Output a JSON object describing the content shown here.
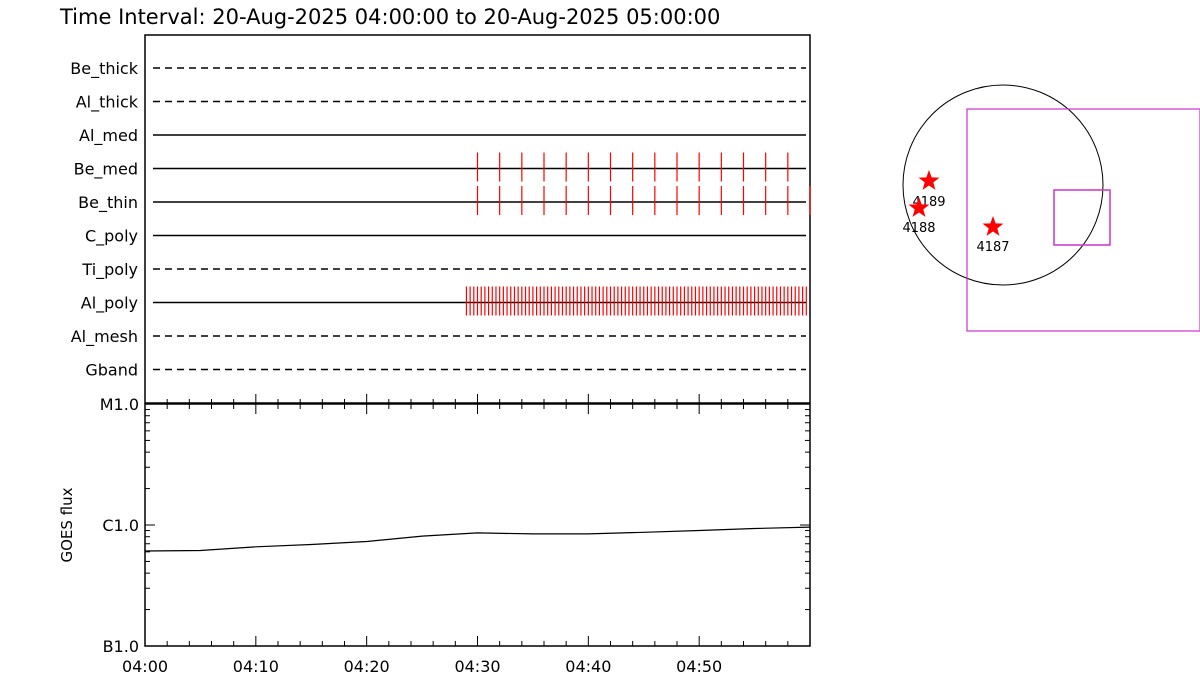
{
  "chart_data": [
    {
      "type": "timeline",
      "title": "Time Interval: 20-Aug-2025 04:00:00 to 20-Aug-2025 05:00:00",
      "x_range": [
        "04:00",
        "05:00"
      ],
      "rows": [
        {
          "name": "Be_thick",
          "line": "dashed",
          "events": []
        },
        {
          "name": "Al_thick",
          "line": "dashed",
          "events": []
        },
        {
          "name": "Al_med",
          "line": "solid",
          "events": []
        },
        {
          "name": "Be_med",
          "line": "solid",
          "events": [
            "04:30:00",
            "04:32:00",
            "04:34:00",
            "04:36:00",
            "04:38:00",
            "04:40:00",
            "04:42:00",
            "04:44:00",
            "04:46:00",
            "04:48:00",
            "04:50:00",
            "04:52:00",
            "04:54:00",
            "04:56:00",
            "04:58:00"
          ]
        },
        {
          "name": "Be_thin",
          "line": "solid",
          "events": [
            "04:30:00",
            "04:32:00",
            "04:34:00",
            "04:36:00",
            "04:38:00",
            "04:40:00",
            "04:42:00",
            "04:44:00",
            "04:46:00",
            "04:48:00",
            "04:50:00",
            "04:52:00",
            "04:54:00",
            "04:56:00",
            "04:58:00",
            "05:00:00"
          ]
        },
        {
          "name": "C_poly",
          "line": "solid",
          "events": []
        },
        {
          "name": "Ti_poly",
          "line": "dashed",
          "events": []
        },
        {
          "name": "Al_poly",
          "line": "solid",
          "events_range": [
            "04:29:00",
            "05:00:00"
          ],
          "event_interval_s": 20
        },
        {
          "name": "Al_mesh",
          "line": "dashed",
          "events": []
        },
        {
          "name": "Gband",
          "line": "dashed",
          "events": []
        }
      ]
    },
    {
      "type": "line",
      "ylabel": "GOES flux",
      "yscale": "log",
      "y_ticks": [
        "M1.0",
        "C1.0",
        "B1.0"
      ],
      "ylim": [
        1e-07,
        1e-05
      ],
      "x_ticks": [
        "04:00",
        "04:10",
        "04:20",
        "04:30",
        "04:40",
        "04:50"
      ],
      "x_range": [
        "04:00",
        "05:00"
      ],
      "series": [
        {
          "x": [
            "04:00",
            "04:05",
            "04:10",
            "04:15",
            "04:20",
            "04:25",
            "04:30",
            "04:35",
            "04:40",
            "04:45",
            "04:50",
            "04:55",
            "05:00"
          ],
          "values": [
            6.1e-07,
            6.15e-07,
            6.6e-07,
            6.9e-07,
            7.3e-07,
            8.1e-07,
            8.6e-07,
            8.45e-07,
            8.45e-07,
            8.7e-07,
            9e-07,
            9.35e-07,
            9.6e-07
          ]
        }
      ]
    },
    {
      "type": "scatter",
      "points": [
        {
          "label": "4189"
        },
        {
          "label": "4188"
        },
        {
          "label": "4187"
        }
      ],
      "colors": {
        "marker": "#ff0000",
        "box": "#cc33cc"
      }
    }
  ]
}
